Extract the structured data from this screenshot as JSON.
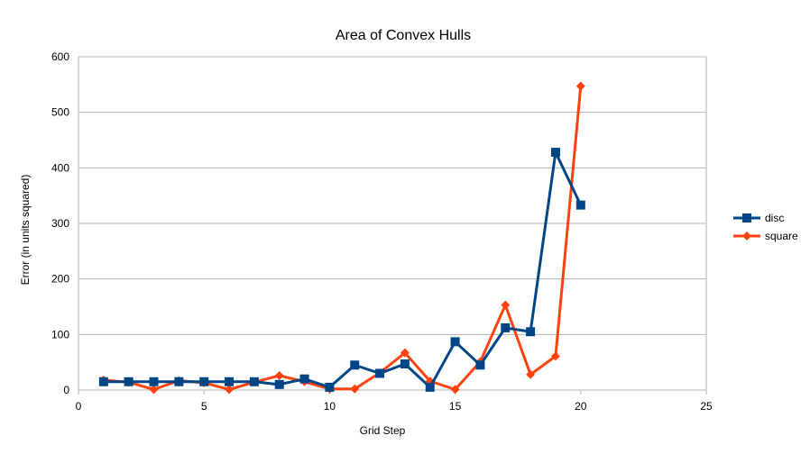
{
  "chart_data": {
    "type": "line",
    "title": "Area of Convex Hulls",
    "xlabel": "Grid Step",
    "ylabel": "Error (in units squared)",
    "xlim": [
      0,
      25
    ],
    "ylim": [
      0,
      600
    ],
    "xticks": [
      0,
      5,
      10,
      15,
      20,
      25
    ],
    "yticks": [
      0,
      100,
      200,
      300,
      400,
      500,
      600
    ],
    "grid": "horizontal",
    "legend_position": "right",
    "series": [
      {
        "name": "disc",
        "color": "#004586",
        "marker": "square",
        "x": [
          1,
          2,
          3,
          4,
          5,
          6,
          7,
          8,
          9,
          10,
          11,
          12,
          13,
          14,
          15,
          16,
          17,
          18,
          19,
          20
        ],
        "y": [
          15,
          15,
          15,
          15,
          15,
          15,
          15,
          10,
          20,
          5,
          45,
          30,
          47,
          5,
          87,
          45,
          112,
          105,
          428,
          333
        ]
      },
      {
        "name": "square",
        "color": "#ff420e",
        "marker": "diamond",
        "x": [
          1,
          2,
          3,
          4,
          5,
          6,
          7,
          8,
          9,
          10,
          11,
          12,
          13,
          14,
          15,
          16,
          17,
          18,
          19,
          20
        ],
        "y": [
          18,
          14,
          1,
          17,
          13,
          1,
          14,
          26,
          15,
          2,
          2,
          31,
          67,
          16,
          1,
          51,
          153,
          28,
          61,
          547
        ]
      }
    ]
  }
}
